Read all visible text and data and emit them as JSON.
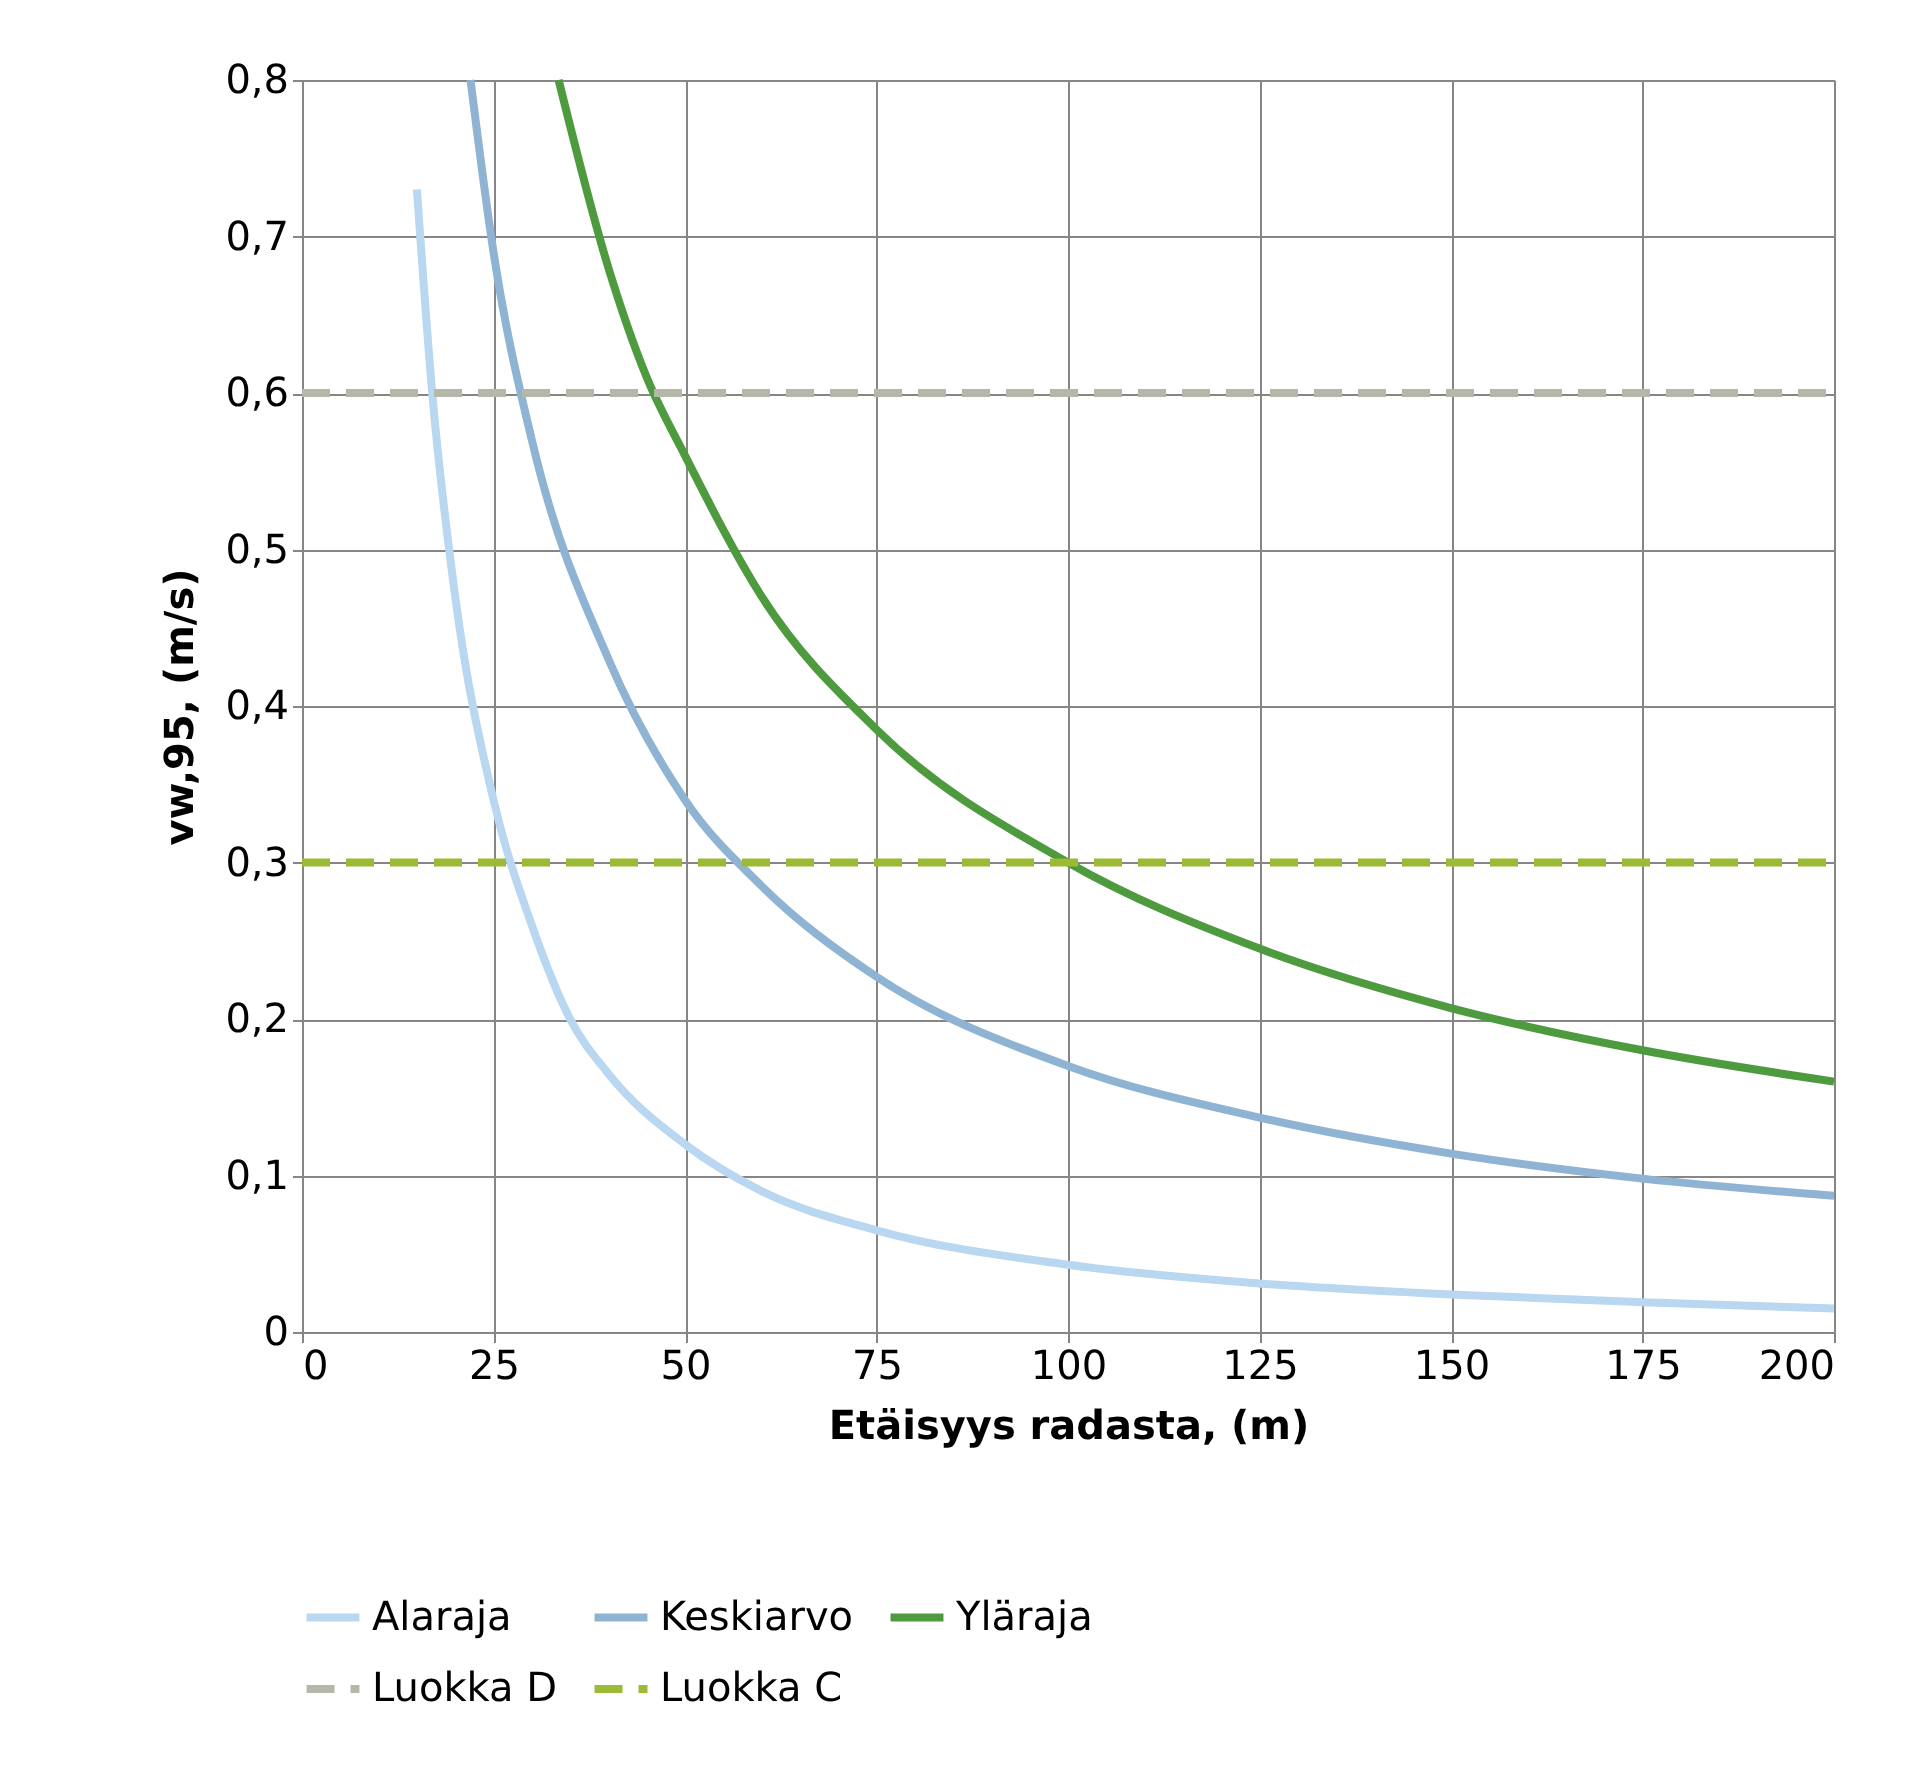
{
  "chart_data": {
    "type": "line",
    "xlabel": "Etäisyys radasta, (m)",
    "ylabel": "vw,95, (m/s)",
    "xlim": [
      0,
      200
    ],
    "xticks": [
      0,
      25,
      50,
      75,
      100,
      125,
      150,
      175,
      200
    ],
    "ylim": [
      0,
      0.8
    ],
    "yticks": [
      {
        "value": 0,
        "label": "0"
      },
      {
        "value": 0.1,
        "label": "0,1"
      },
      {
        "value": 0.2,
        "label": "0,2"
      },
      {
        "value": 0.3,
        "label": "0,3"
      },
      {
        "value": 0.4,
        "label": "0,4"
      },
      {
        "value": 0.5,
        "label": "0,5"
      },
      {
        "value": 0.6,
        "label": "0,6"
      },
      {
        "value": 0.7,
        "label": "0,7"
      },
      {
        "value": 0.8,
        "label": "0,8"
      }
    ],
    "grid": true,
    "legend": "bottom",
    "marker": "none",
    "series": [
      {
        "name": "Alaraja",
        "color": "#b9d7f0",
        "line_style": "solid",
        "x": [
          15,
          17,
          20,
          25,
          30,
          35,
          40,
          50,
          60,
          75,
          100,
          125,
          150,
          175,
          200
        ],
        "values": [
          0.73,
          0.6,
          0.47,
          0.34,
          0.26,
          0.2,
          0.165,
          0.12,
          0.09,
          0.065,
          0.043,
          0.031,
          0.024,
          0.019,
          0.015
        ]
      },
      {
        "name": "Keskiarvo",
        "color": "#8fb4d3",
        "line_style": "solid",
        "x": [
          22,
          25,
          30,
          40,
          50,
          60,
          75,
          100,
          125,
          150,
          175,
          200
        ],
        "values": [
          0.8,
          0.69,
          0.57,
          0.43,
          0.34,
          0.285,
          0.227,
          0.17,
          0.137,
          0.114,
          0.098,
          0.087
        ]
      },
      {
        "name": "Yläraja",
        "color": "#4e9a3e",
        "line_style": "solid",
        "x": [
          33.5,
          40,
          45,
          50,
          60,
          75,
          100,
          125,
          150,
          175,
          200
        ],
        "values": [
          0.8,
          0.68,
          0.61,
          0.56,
          0.47,
          0.385,
          0.3,
          0.245,
          0.207,
          0.18,
          0.16
        ]
      },
      {
        "name": "Luokka D",
        "color": "#b4b8a8",
        "line_style": "dashed",
        "x": [
          0,
          200
        ],
        "values": [
          0.6,
          0.6
        ]
      },
      {
        "name": "Luokka C",
        "color": "#9bbb34",
        "line_style": "dashed",
        "x": [
          0,
          200
        ],
        "values": [
          0.3,
          0.3
        ]
      }
    ]
  }
}
